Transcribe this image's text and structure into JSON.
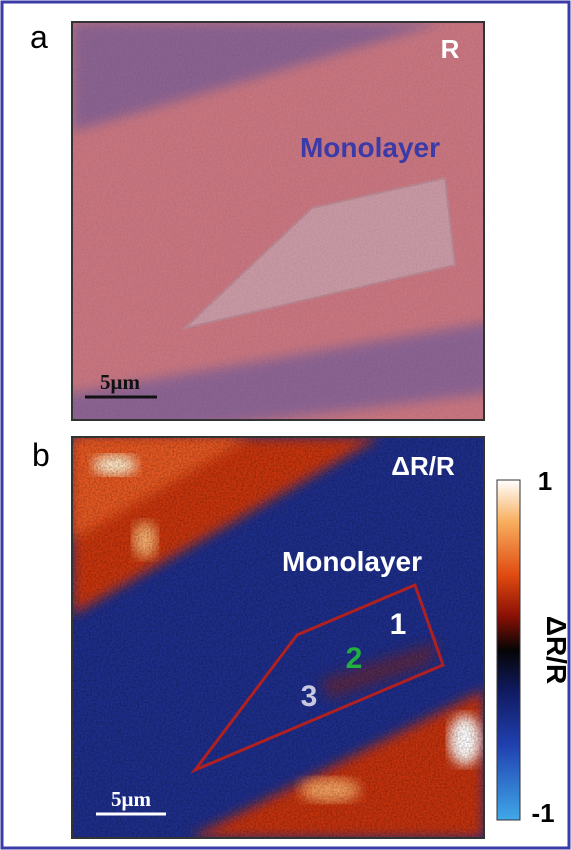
{
  "panels": [
    {
      "label": "a",
      "corner_label": "R",
      "annotation": "Monolayer",
      "scale_bar": "5μm"
    },
    {
      "label": "b",
      "corner_label": "ΔR/R",
      "annotation": "Monolayer",
      "regions": [
        "1",
        "2",
        "3"
      ],
      "scale_bar": "5μm",
      "colorbar": {
        "max": "1",
        "min": "-1",
        "title": "ΔR/R"
      }
    }
  ]
}
